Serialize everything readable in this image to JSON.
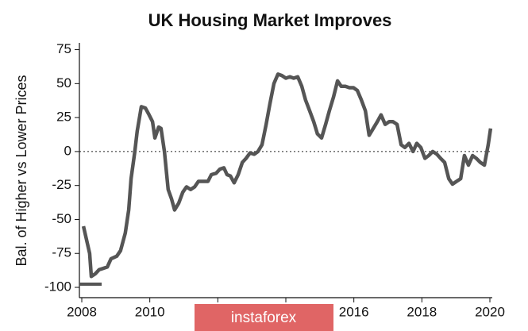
{
  "chart_data": {
    "type": "line",
    "title": "UK Housing Market Improves",
    "y_label": "Bal. of Higher vs Lower Prices",
    "color": "#555555",
    "x": [
      2008.05,
      2008.23,
      2008.28,
      2008.4,
      2008.51,
      2008.75,
      2008.86,
      2009.03,
      2009.14,
      2009.28,
      2009.38,
      2009.45,
      2009.56,
      2009.63,
      2009.75,
      2009.87,
      2009.98,
      2010.08,
      2010.15,
      2010.26,
      2010.33,
      2010.43,
      2010.54,
      2010.64,
      2010.73,
      2010.85,
      2010.97,
      2011.08,
      2011.2,
      2011.32,
      2011.43,
      2011.55,
      2011.71,
      2011.81,
      2011.95,
      2012.06,
      2012.18,
      2012.27,
      2012.37,
      2012.48,
      2012.6,
      2012.72,
      2012.83,
      2012.95,
      2013.07,
      2013.18,
      2013.3,
      2013.42,
      2013.53,
      2013.65,
      2013.77,
      2013.88,
      2014.0,
      2014.12,
      2014.23,
      2014.35,
      2014.47,
      2014.58,
      2014.7,
      2014.82,
      2014.93,
      2015.05,
      2015.17,
      2015.28,
      2015.4,
      2015.52,
      2015.63,
      2015.75,
      2015.87,
      2015.99,
      2016.1,
      2016.22,
      2016.34,
      2016.45,
      2016.57,
      2016.69,
      2016.8,
      2016.92,
      2017.04,
      2017.15,
      2017.27,
      2017.39,
      2017.5,
      2017.62,
      2017.74,
      2017.85,
      2017.97,
      2018.09,
      2018.2,
      2018.32,
      2018.44,
      2018.55,
      2018.67,
      2018.79,
      2018.9,
      2019.02,
      2019.14,
      2019.25,
      2019.37,
      2019.49,
      2019.6,
      2019.72,
      2019.84,
      2019.95,
      2020.02
    ],
    "values": [
      -55,
      -75,
      -92,
      -90,
      -87,
      -85,
      -79,
      -77,
      -73,
      -60,
      -43,
      -20,
      0,
      15,
      33,
      32,
      27,
      22,
      10,
      18,
      17,
      0,
      -28,
      -35,
      -43,
      -38,
      -30,
      -26,
      -28,
      -26,
      -22,
      -22,
      -22,
      -17,
      -16,
      -13,
      -12,
      -17,
      -18,
      -23,
      -17,
      -8,
      -5,
      -1,
      -2,
      0,
      5,
      20,
      35,
      50,
      57,
      56,
      54,
      55,
      54,
      55,
      48,
      38,
      30,
      22,
      13,
      10,
      20,
      30,
      40,
      52,
      48,
      48,
      47,
      47,
      45,
      38,
      30,
      12,
      17,
      22,
      27,
      20,
      22,
      22,
      20,
      5,
      3,
      6,
      0,
      6,
      3,
      -5,
      -3,
      0,
      -2,
      -5,
      -8,
      -20,
      -24,
      -22,
      -20,
      -3,
      -10,
      -3,
      -5,
      -8,
      -10,
      5,
      17
    ],
    "xlim": [
      2007.93,
      2020.07
    ],
    "ylim": [
      -107,
      80
    ],
    "xticks": [
      2008,
      2010,
      2012,
      2014,
      2016,
      2018,
      2020
    ],
    "yticks": [
      75,
      50,
      25,
      0,
      -25,
      -50,
      -75,
      -100
    ],
    "hline": 0
  },
  "watermark": "instaforex"
}
